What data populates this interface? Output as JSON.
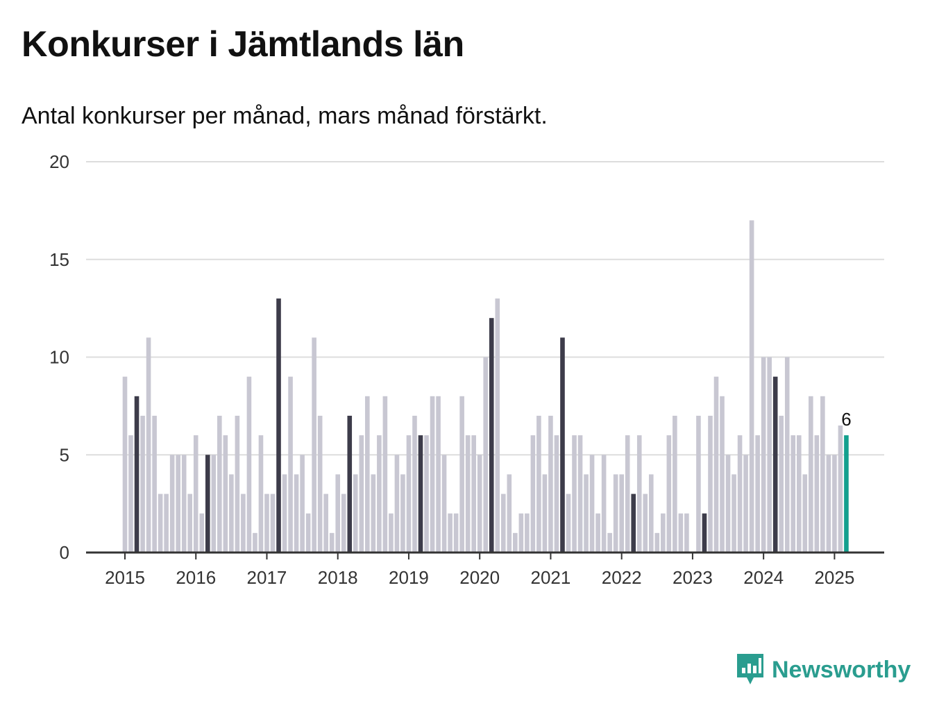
{
  "title": "Konkurser i Jämtlands län",
  "subtitle": "Antal konkurser per månad, mars månad förstärkt.",
  "brand": {
    "name": "Newsworthy",
    "icon": "newsworthy-logo-icon"
  },
  "colors": {
    "bar": "#c8c7d2",
    "highlight": "#3d3c4a",
    "current": "#13a08e",
    "grid": "#dddddd",
    "axis": "#333333"
  },
  "chart_data": {
    "type": "bar",
    "start": "2015-01",
    "highlight_month": 3,
    "x_tick_labels": [
      "2015",
      "2016",
      "2017",
      "2018",
      "2019",
      "2020",
      "2021",
      "2022",
      "2023",
      "2024",
      "2025"
    ],
    "y_ticks": [
      0,
      5,
      10,
      15,
      20
    ],
    "ylim": [
      0,
      20
    ],
    "data_labels": [
      {
        "month": "2025-03",
        "text": "6"
      }
    ],
    "values": [
      9,
      6,
      8,
      7,
      11,
      7,
      3,
      3,
      5,
      5,
      5,
      3,
      6,
      2,
      5,
      5,
      7,
      6,
      4,
      7,
      3,
      9,
      1,
      6,
      3,
      3,
      13,
      4,
      9,
      4,
      5,
      2,
      11,
      7,
      3,
      1,
      4,
      3,
      7,
      4,
      6,
      8,
      4,
      6,
      8,
      2,
      5,
      4,
      6,
      7,
      6,
      6,
      8,
      8,
      5,
      2,
      2,
      8,
      6,
      6,
      5,
      10,
      12,
      13,
      3,
      4,
      1,
      2,
      2,
      6,
      7,
      4,
      7,
      6,
      11,
      3,
      6,
      6,
      4,
      5,
      2,
      5,
      1,
      4,
      4,
      6,
      3,
      6,
      3,
      4,
      1,
      2,
      6,
      7,
      2,
      2,
      0,
      7,
      2,
      7,
      9,
      8,
      5,
      4,
      6,
      5,
      17,
      6,
      10,
      10,
      9,
      7,
      10,
      6,
      6,
      4,
      8,
      6,
      8,
      5,
      5,
      6.5,
      6
    ]
  }
}
